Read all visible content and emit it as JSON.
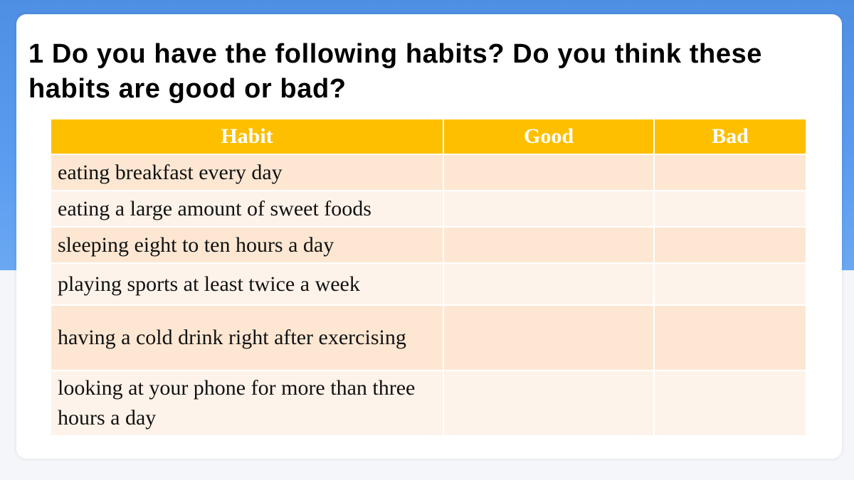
{
  "slide": {
    "title": "1 Do you have the following habits? Do you think these habits are good or bad?"
  },
  "table": {
    "headers": [
      "Habit",
      "Good",
      "Bad"
    ],
    "rows": [
      {
        "habit": "eating breakfast every day",
        "good": "",
        "bad": ""
      },
      {
        "habit": "eating a large amount of sweet foods",
        "good": "",
        "bad": ""
      },
      {
        "habit": "sleeping eight to ten hours a day",
        "good": "",
        "bad": ""
      },
      {
        "habit": "playing sports at least twice a week",
        "good": "",
        "bad": ""
      },
      {
        "habit": "having a cold drink right after exercising",
        "good": "",
        "bad": ""
      },
      {
        "habit": "looking at your phone for more than three hours a day",
        "good": "",
        "bad": ""
      }
    ]
  },
  "colors": {
    "header_bg": "#fdbf00",
    "row_odd_bg": "#fde7d3",
    "row_even_bg": "#fef3ea",
    "frame_blue": "#5b9cf0"
  }
}
